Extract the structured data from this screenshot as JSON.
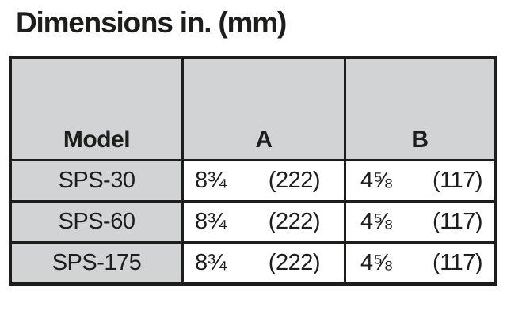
{
  "title": "Dimensions in. (mm)",
  "table": {
    "headers": {
      "model": "Model",
      "a": "A",
      "b": "B"
    },
    "rows": [
      {
        "model": "SPS-30",
        "a_in": "8¾",
        "a_mm": "(222)",
        "b_in": "4⅝",
        "b_mm": "(117)"
      },
      {
        "model": "SPS-60",
        "a_in": "8¾",
        "a_mm": "(222)",
        "b_in": "4⅝",
        "b_mm": "(117)"
      },
      {
        "model": "SPS-175",
        "a_in": "8¾",
        "a_mm": "(222)",
        "b_in": "4⅝",
        "b_mm": "(117)"
      }
    ]
  },
  "colors": {
    "page_bg": "#ffffff",
    "header_bg": "#d2d3d5",
    "model_col_bg": "#d2d3d5",
    "border": "#1d1d1b",
    "text": "#1d1d1b"
  }
}
